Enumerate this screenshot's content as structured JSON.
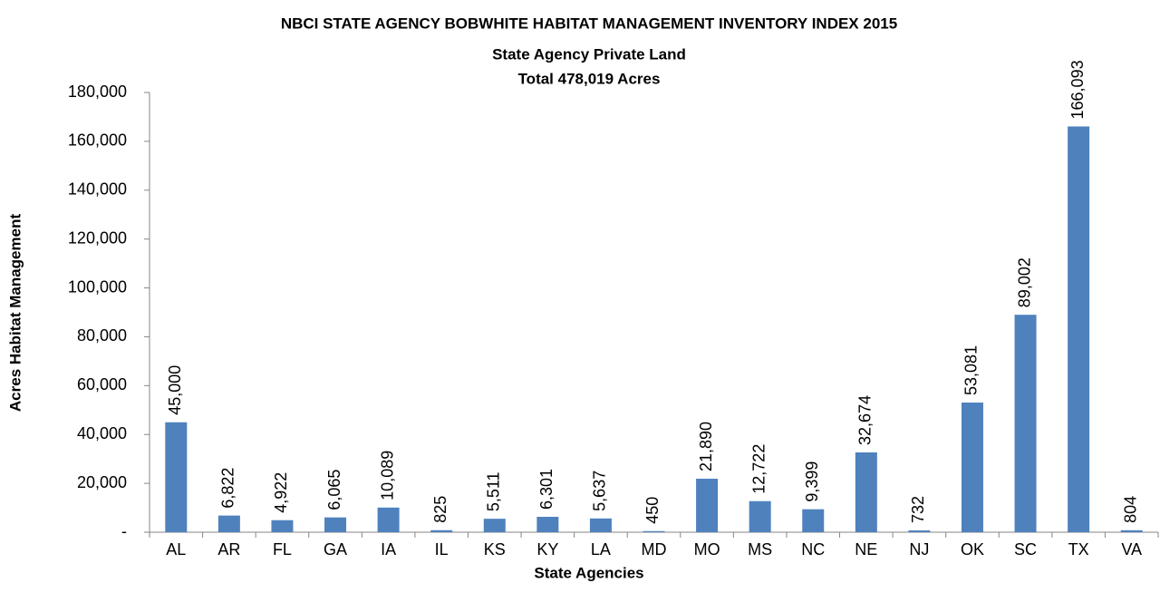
{
  "chart_data": {
    "type": "bar",
    "title": "NBCI STATE AGENCY BOBWHITE HABITAT MANAGEMENT INVENTORY INDEX 2015",
    "subtitle": [
      "State Agency Private Land",
      "Total 478,019 Acres"
    ],
    "x_label": "State Agencies",
    "y_label": "Acres Habitat Management",
    "categories": [
      "AL",
      "AR",
      "FL",
      "GA",
      "IA",
      "IL",
      "KS",
      "KY",
      "LA",
      "MD",
      "MO",
      "MS",
      "NC",
      "NE",
      "NJ",
      "OK",
      "SC",
      "TX",
      "VA"
    ],
    "values": [
      45000,
      6822,
      4922,
      6065,
      10089,
      825,
      5511,
      6301,
      5637,
      450,
      21890,
      12722,
      9399,
      32674,
      732,
      53081,
      89002,
      166093,
      804
    ],
    "value_labels": [
      "45,000",
      "6,822",
      "4,922",
      "6,065",
      "10,089",
      "825",
      "5,511",
      "6,301",
      "5,637",
      "450",
      "21,890",
      "12,722",
      "9,399",
      "32,674",
      "732",
      "53,081",
      "89,002",
      "166,093",
      "804"
    ],
    "color": "#4f81bd",
    "ylim": [
      0,
      180000
    ],
    "yticks": [
      {
        "value": 0,
        "label": "-"
      },
      {
        "value": 20000,
        "label": "20,000"
      },
      {
        "value": 40000,
        "label": "40,000"
      },
      {
        "value": 60000,
        "label": "60,000"
      },
      {
        "value": 80000,
        "label": "80,000"
      },
      {
        "value": 100000,
        "label": "100,000"
      },
      {
        "value": 120000,
        "label": "120,000"
      },
      {
        "value": 140000,
        "label": "140,000"
      },
      {
        "value": 160000,
        "label": "160,000"
      },
      {
        "value": 180000,
        "label": "180,000"
      }
    ],
    "grid": false
  }
}
